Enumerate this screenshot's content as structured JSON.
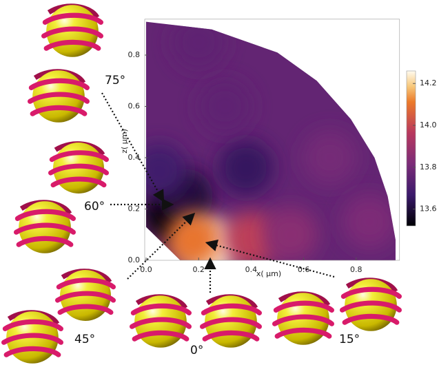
{
  "chart_data": {
    "type": "field",
    "x_label": "x( μm)",
    "y_label": "z( μm)",
    "xlim": [
      0,
      0.96
    ],
    "ylim": [
      0,
      0.94
    ],
    "xticks": [
      {
        "value": 0,
        "label": "0.0"
      },
      0.2,
      0.4,
      0.6,
      0.8
    ],
    "yticks": [
      {
        "value": 0,
        "label": "0.0"
      },
      0.2,
      0.4,
      0.6,
      0.8
    ],
    "boundary": [
      [
        0,
        0.93
      ],
      [
        0.25,
        0.9
      ],
      [
        0.5,
        0.81
      ],
      [
        0.65,
        0.7
      ],
      [
        0.78,
        0.55
      ],
      [
        0.87,
        0.4
      ],
      [
        0.92,
        0.25
      ],
      [
        0.95,
        0.08
      ],
      [
        0.95,
        0
      ],
      [
        0.13,
        0
      ],
      [
        0.08,
        0.05
      ],
      [
        0,
        0.13
      ]
    ],
    "background_value": 13.76,
    "points": [
      {
        "x": 0.1,
        "z": 0.18,
        "value": 13.52
      },
      {
        "x": 0.15,
        "z": 0.25,
        "value": 13.6
      },
      {
        "x": 0.05,
        "z": 0.35,
        "value": 13.68
      },
      {
        "x": 0.38,
        "z": 0.36,
        "value": 13.65
      },
      {
        "x": 0.25,
        "z": 0.05,
        "value": 14.25
      },
      {
        "x": 0.18,
        "z": 0.08,
        "value": 14.1
      },
      {
        "x": 0.4,
        "z": 0.08,
        "value": 13.98
      },
      {
        "x": 0.55,
        "z": 0.1,
        "value": 13.85
      },
      {
        "x": 0.3,
        "z": 0.6,
        "value": 13.75
      },
      {
        "x": 0.7,
        "z": 0.4,
        "value": 13.8
      },
      {
        "x": 0.2,
        "z": 0.85,
        "value": 13.75
      },
      {
        "x": 0.85,
        "z": 0.15,
        "value": 13.82
      }
    ],
    "clim": [
      13.52,
      14.26
    ],
    "cticks": [
      14.2,
      {
        "value": 14.0,
        "label": "14.0"
      },
      13.8,
      13.6
    ],
    "annotations": [
      "75°",
      "60°",
      "45°",
      "0°",
      "15°"
    ]
  }
}
